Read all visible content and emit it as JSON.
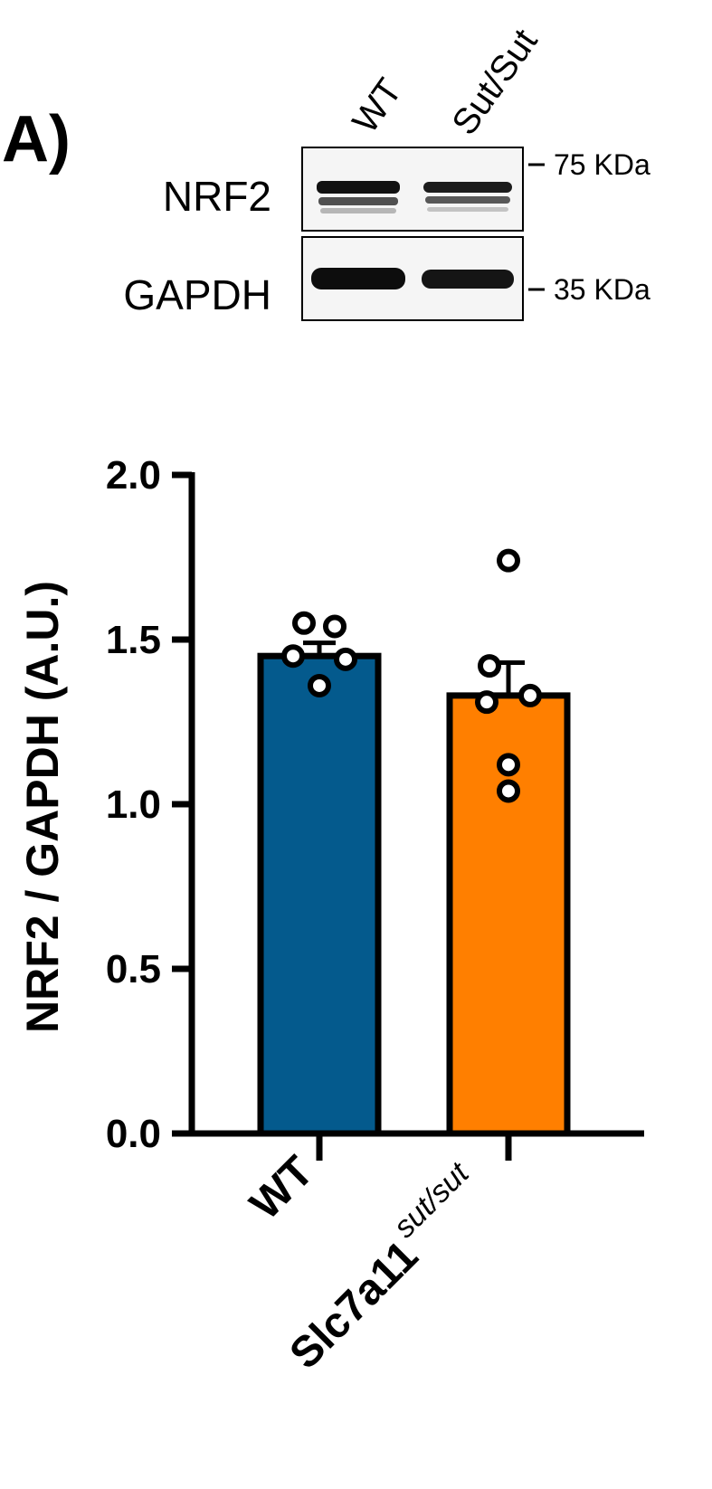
{
  "figure": {
    "panel_label": "A)"
  },
  "blot": {
    "lanes": [
      "WT",
      "Sut/Sut"
    ],
    "rows": [
      {
        "label": "NRF2",
        "marker": "75 KDa"
      },
      {
        "label": "GAPDH",
        "marker": "35 KDa"
      }
    ]
  },
  "chart_data": {
    "type": "bar",
    "categories": [
      "WT",
      "Slc7a11"
    ],
    "category_superscripts": [
      "",
      "sut/sut"
    ],
    "values": [
      1.45,
      1.33
    ],
    "errors": [
      0.04,
      0.1
    ],
    "points": [
      [
        1.55,
        1.54,
        1.45,
        1.44,
        1.36
      ],
      [
        1.74,
        1.42,
        1.33,
        1.31,
        1.12,
        1.04
      ]
    ],
    "colors": [
      "#045a8d",
      "#ff7f00"
    ],
    "ylabel": "NRF2 / GAPDH (A.U.)",
    "xlabel": "",
    "title": "",
    "ylim": [
      0,
      2.0
    ],
    "yticks": [
      "0.0",
      "0.5",
      "1.0",
      "1.5",
      "2.0"
    ],
    "grid": false
  }
}
